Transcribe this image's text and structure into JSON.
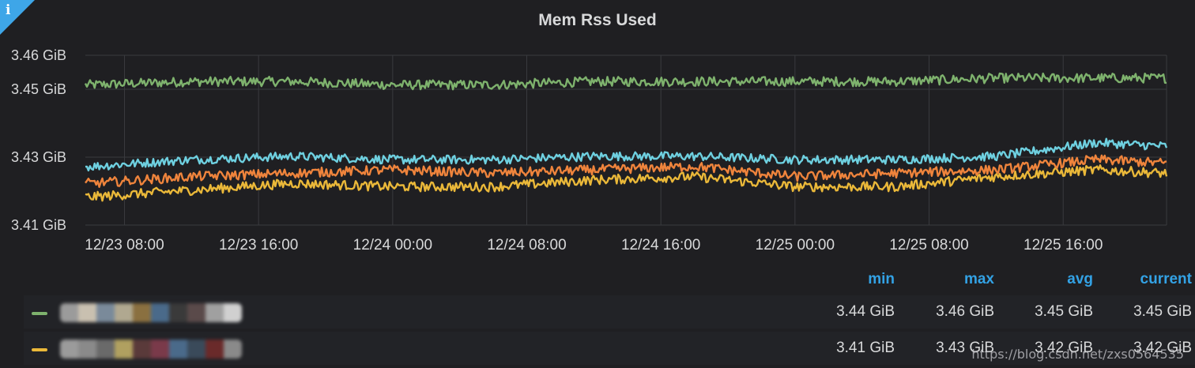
{
  "panel": {
    "title": "Mem Rss Used",
    "info_icon": "info-icon",
    "info_glyph": "i"
  },
  "chart_data": {
    "type": "line",
    "title": "Mem Rss Used",
    "y_unit": "GiB",
    "ylim": [
      3.41,
      3.46
    ],
    "y_ticks": [
      "3.41 GiB",
      "3.43 GiB",
      "3.45 GiB",
      "3.46 GiB"
    ],
    "y_tick_values": [
      3.41,
      3.43,
      3.45,
      3.46
    ],
    "x_start": "12/23 05:40",
    "x_end": "12/25 22:10",
    "x_ticks": [
      "12/23 08:00",
      "12/23 16:00",
      "12/24 00:00",
      "12/24 08:00",
      "12/24 16:00",
      "12/25 00:00",
      "12/25 08:00",
      "12/25 16:00"
    ],
    "x_tick_times": [
      "12/23 08:00",
      "12/23 16:00",
      "12/24 00:00",
      "12/24 08:00",
      "12/24 16:00",
      "12/25 00:00",
      "12/25 08:00",
      "12/25 16:00"
    ],
    "grid": true,
    "legend_placement": "bottom table",
    "series": [
      {
        "color": "#7eb26d",
        "min": "3.44 GiB",
        "max": "3.46 GiB",
        "avg": "3.45 GiB",
        "current": "3.45 GiB",
        "times": [
          "12/23 06:00",
          "12/23 12:00",
          "12/23 18:00",
          "12/24 00:00",
          "12/24 06:00",
          "12/24 12:00",
          "12/24 18:00",
          "12/25 00:00",
          "12/25 06:00",
          "12/25 12:00",
          "12/25 18:00",
          "12/25 22:00"
        ],
        "values": [
          3.451,
          3.452,
          3.452,
          3.451,
          3.451,
          3.452,
          3.452,
          3.452,
          3.452,
          3.453,
          3.453,
          3.453
        ]
      },
      {
        "color": "#eab839",
        "min": "3.41 GiB",
        "max": "3.43 GiB",
        "times": [
          "12/23 06:00",
          "12/23 12:00",
          "12/23 18:00",
          "12/24 00:00",
          "12/24 06:00",
          "12/24 12:00",
          "12/24 18:00",
          "12/25 00:00",
          "12/25 06:00",
          "12/25 12:00",
          "12/25 18:00",
          "12/25 22:00"
        ],
        "values": [
          3.418,
          3.42,
          3.422,
          3.421,
          3.421,
          3.423,
          3.424,
          3.421,
          3.421,
          3.424,
          3.426,
          3.425
        ]
      },
      {
        "color": "#6ed0e0",
        "times": [
          "12/23 06:00",
          "12/23 12:00",
          "12/23 18:00",
          "12/24 00:00",
          "12/24 06:00",
          "12/24 12:00",
          "12/24 18:00",
          "12/25 00:00",
          "12/25 06:00",
          "12/25 12:00",
          "12/25 18:00",
          "12/25 22:00"
        ],
        "values": [
          3.427,
          3.429,
          3.43,
          3.429,
          3.429,
          3.43,
          3.43,
          3.429,
          3.429,
          3.43,
          3.434,
          3.433
        ]
      },
      {
        "color": "#ef843c",
        "times": [
          "12/23 06:00",
          "12/23 12:00",
          "12/23 18:00",
          "12/24 00:00",
          "12/24 06:00",
          "12/24 12:00",
          "12/24 18:00",
          "12/25 00:00",
          "12/25 06:00",
          "12/25 12:00",
          "12/25 18:00",
          "12/25 22:00"
        ],
        "values": [
          3.422,
          3.424,
          3.425,
          3.426,
          3.425,
          3.426,
          3.427,
          3.424,
          3.425,
          3.426,
          3.429,
          3.428
        ]
      }
    ]
  },
  "legend": {
    "headers": {
      "min": "min",
      "max": "max",
      "avg": "avg",
      "current": "current"
    },
    "rows": [
      {
        "color": "#7eb26d",
        "min": "3.44 GiB",
        "max": "3.46 GiB",
        "avg": "3.45 GiB",
        "current": "3.45 GiB",
        "name_blur": [
          "#9b9b9b",
          "#c9c0b0",
          "#7a8a9a",
          "#b0a890",
          "#8a7040",
          "#4a6a8a",
          "#3a3a3a",
          "#5a4a4a",
          "#a0a0a0",
          "#d0d0d0"
        ]
      },
      {
        "color": "#eab839",
        "min": "3.41 GiB",
        "max": "3.43 GiB",
        "avg": "3.42 GiB",
        "current": "3.42 GiB",
        "name_blur": [
          "#9b9b9b",
          "#8a8a8a",
          "#6a6a6a",
          "#b0a060",
          "#5a3a3a",
          "#7a3a4a",
          "#4a6a8a",
          "#3a4a5a",
          "#6a2a2a",
          "#8a8a8a"
        ]
      }
    ]
  },
  "watermark": "https://blog.csdn.net/zxs0564535"
}
